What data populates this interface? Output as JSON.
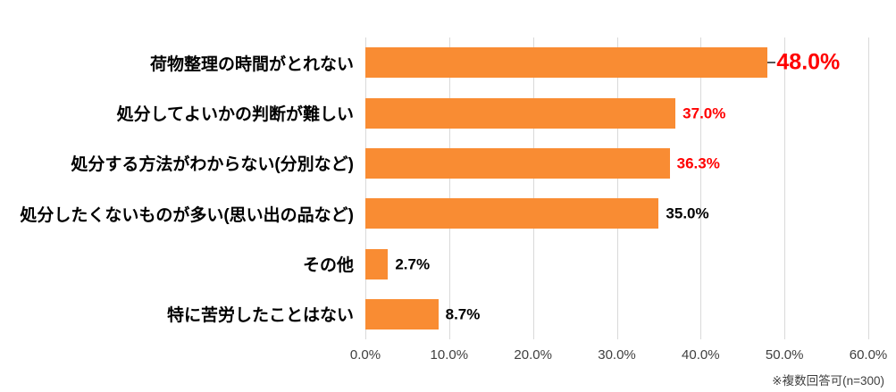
{
  "chart_data": {
    "type": "bar",
    "orientation": "horizontal",
    "title": "",
    "xlabel": "",
    "ylabel": "",
    "categories": [
      "荷物整理の時間がとれない",
      "処分してよいかの判断が難しい",
      "処分する方法がわからない(分別など)",
      "処分したくないものが多い(思い出の品など)",
      "その他",
      "特に苦労したことはない"
    ],
    "values": [
      48.0,
      37.0,
      36.3,
      35.0,
      2.7,
      8.7
    ],
    "value_labels": [
      "48.0%",
      "37.0%",
      "36.3%",
      "35.0%",
      "2.7%",
      "8.7%"
    ],
    "value_label_colors": [
      "#ff0000",
      "#ff0000",
      "#ff0000",
      "#000000",
      "#000000",
      "#000000"
    ],
    "value_label_emphasis": [
      true,
      false,
      false,
      false,
      false,
      false
    ],
    "x_ticks": [
      "0.0%",
      "10.0%",
      "20.0%",
      "30.0%",
      "40.0%",
      "50.0%",
      "60.0%"
    ],
    "xlim": [
      0,
      60
    ],
    "grid": true,
    "legend": false,
    "bar_color": "#f98c33",
    "gridline_color": "#d9d9d9",
    "footnote": "※複数回答可(n=300)"
  }
}
